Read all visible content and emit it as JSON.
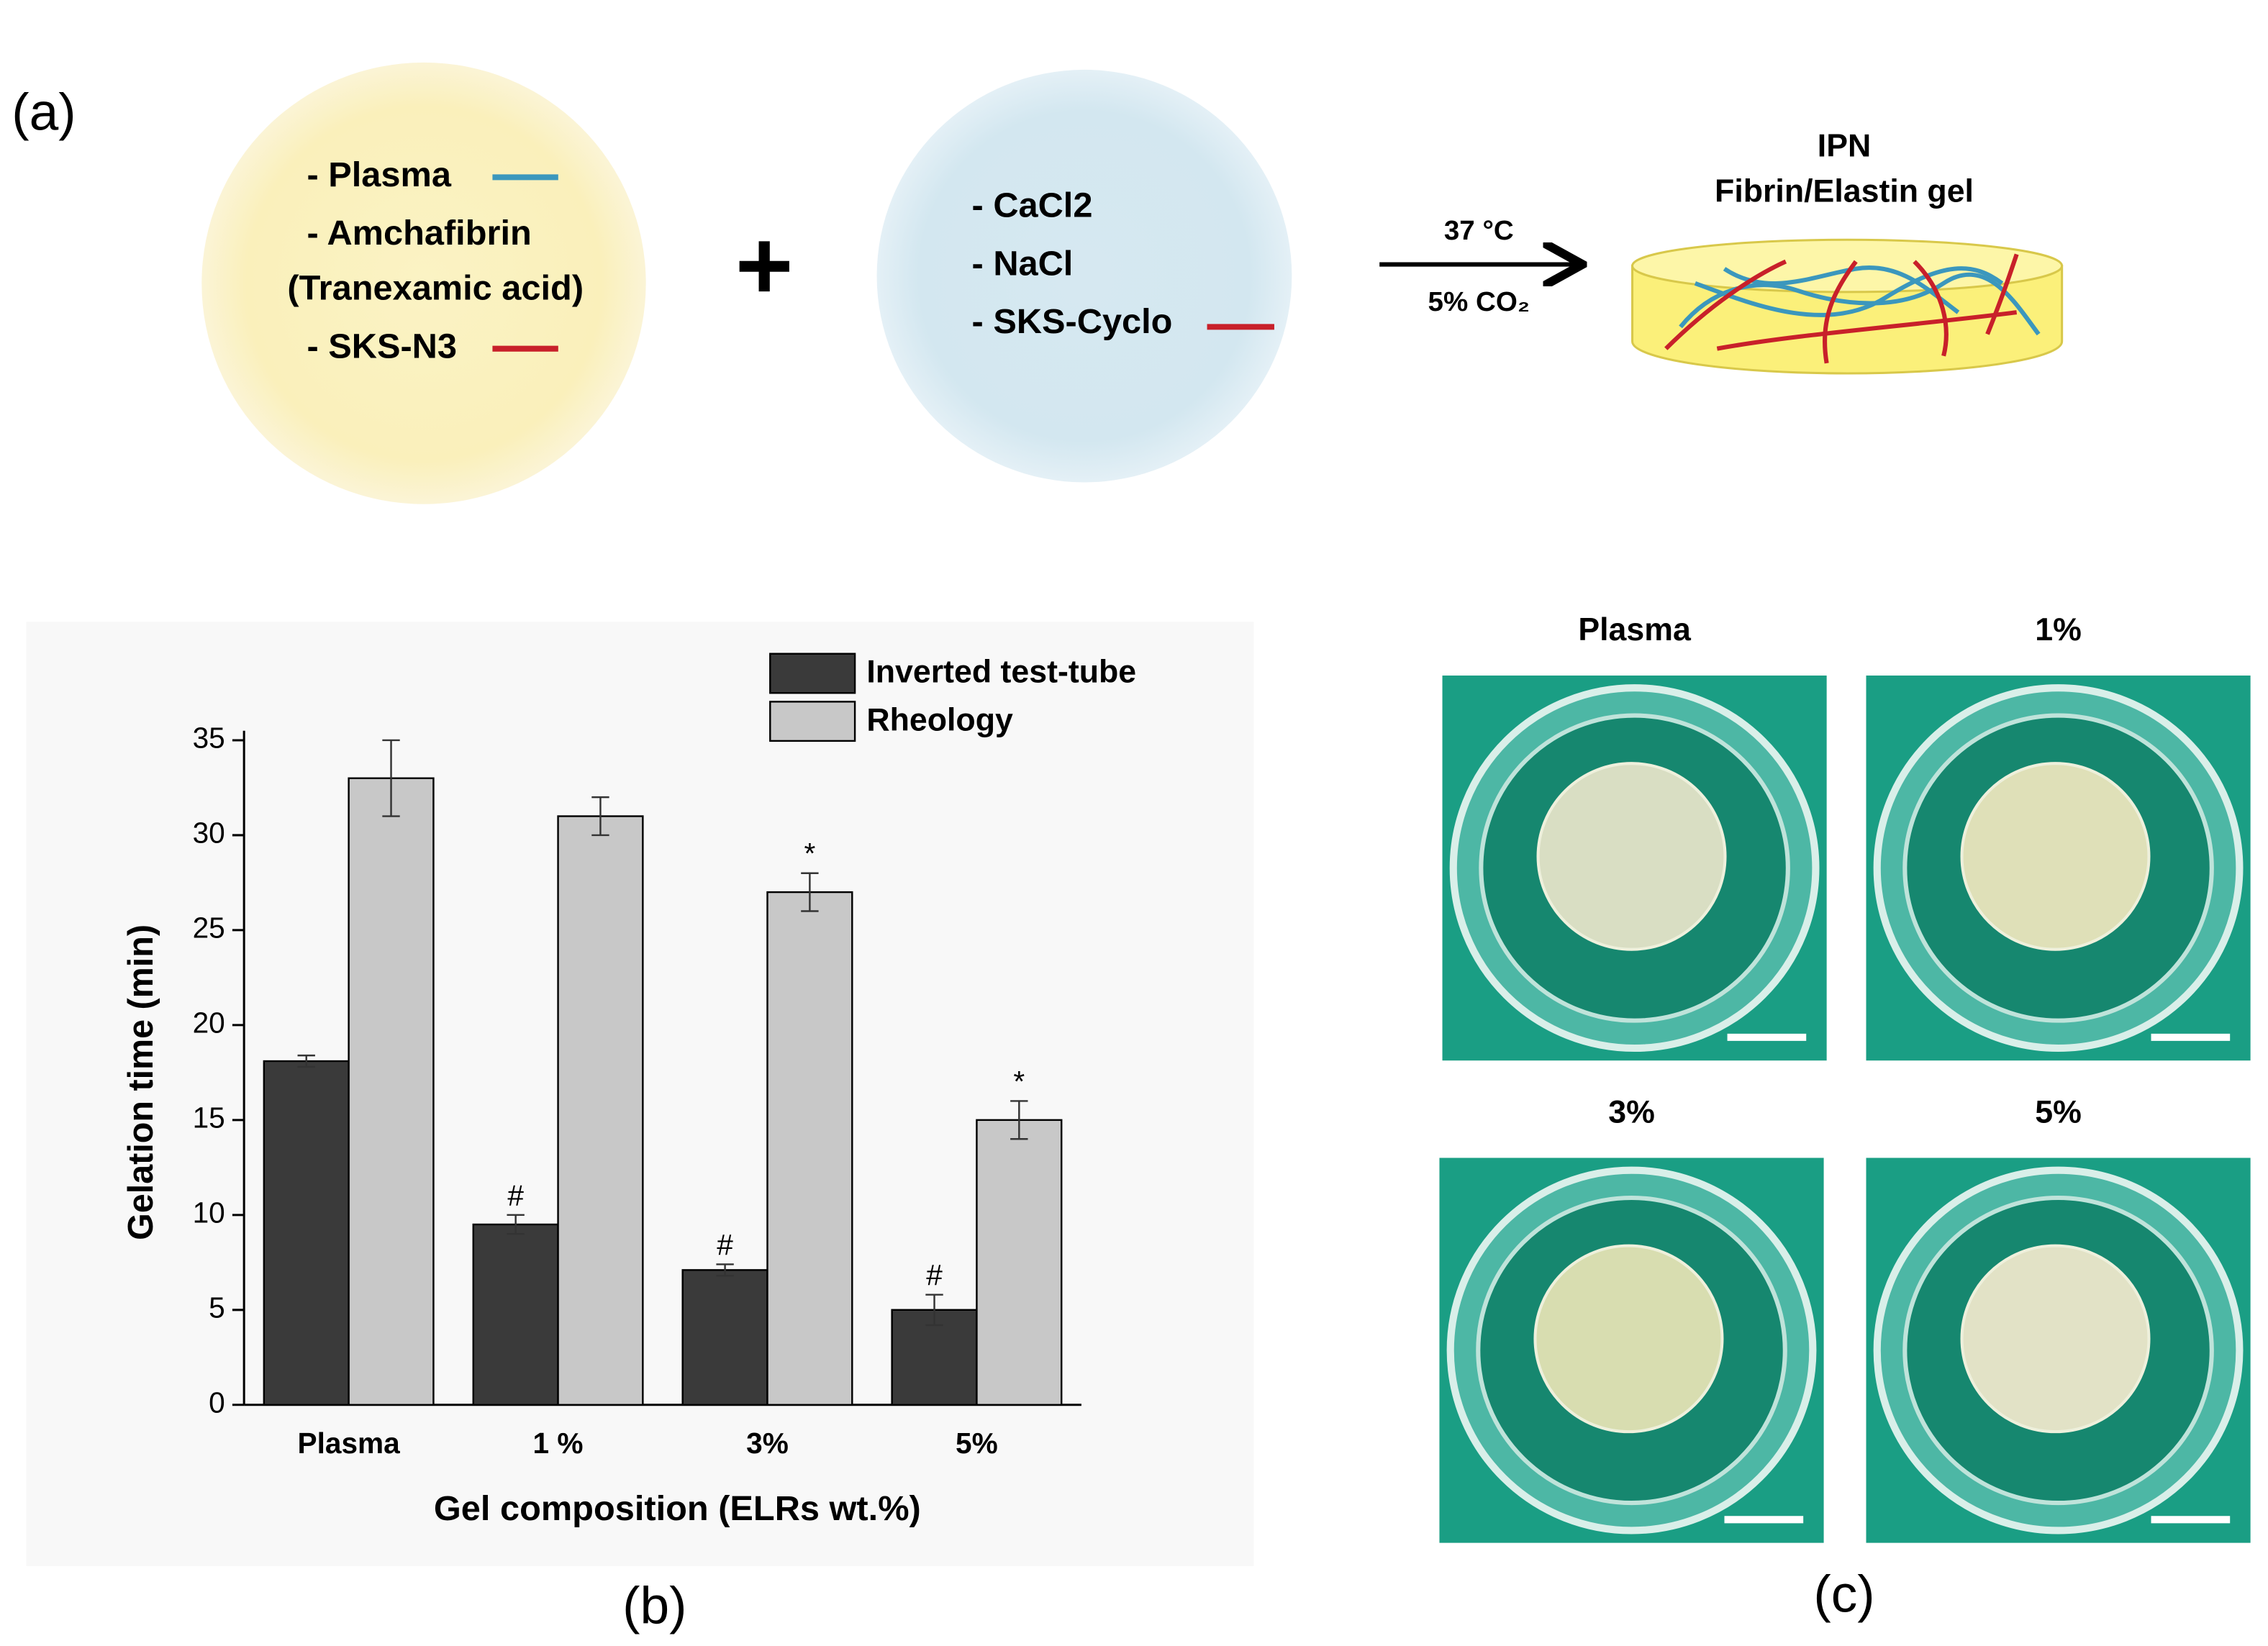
{
  "panel_a": {
    "label": "(a)",
    "mixture_1": [
      "- Plasma",
      "- Amchafibrin",
      "(Tranexamic acid)",
      "- SKS-N3"
    ],
    "plus": "+",
    "mixture_2": [
      "- CaCl2",
      "- NaCl",
      "- SKS-Cyclo"
    ],
    "conditions": [
      "37 °C",
      "5% CO₂"
    ],
    "product": [
      "IPN",
      "Fibrin/Elastin gel"
    ]
  },
  "chart_data": {
    "type": "bar",
    "panel_label": "(b)",
    "y_label": "Gelation time (min)",
    "x_label": "Gel composition (ELRs wt.%)",
    "categories": [
      "Plasma",
      "1 %",
      "3%",
      "5%"
    ],
    "series": [
      {
        "name": "Inverted test-tube",
        "color": "#3a3a3a",
        "values": [
          18.1,
          9.5,
          7.1,
          5.0
        ],
        "errors": [
          0.3,
          0.5,
          0.3,
          0.8
        ],
        "annotations": [
          null,
          "#",
          "#",
          "#"
        ]
      },
      {
        "name": "Rheology",
        "color": "#c8c8c8",
        "values": [
          33,
          31,
          27,
          15
        ],
        "errors": [
          2,
          1,
          1,
          1
        ],
        "annotations": [
          null,
          null,
          "*",
          "*"
        ]
      }
    ],
    "ylim": [
      0,
      35.5
    ],
    "yticks": [
      0,
      5,
      10,
      15,
      20,
      25,
      30,
      35
    ],
    "legend": "upper right"
  },
  "panel_c": {
    "label": "(c)",
    "photos": [
      "Plasma",
      "1%",
      "3%",
      "5%"
    ]
  }
}
